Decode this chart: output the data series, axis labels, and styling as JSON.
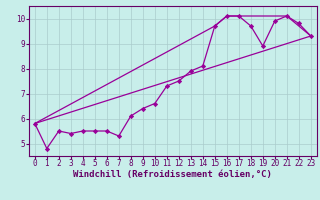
{
  "title": "",
  "xlabel": "Windchill (Refroidissement éolien,°C)",
  "bg_color": "#c8eeea",
  "line_color": "#990099",
  "grid_color": "#aacccc",
  "axis_color": "#660066",
  "spine_color": "#660066",
  "x_data": [
    0,
    1,
    2,
    3,
    4,
    5,
    6,
    7,
    8,
    9,
    10,
    11,
    12,
    13,
    14,
    15,
    16,
    17,
    18,
    19,
    20,
    21,
    22,
    23
  ],
  "y_data": [
    5.8,
    4.8,
    5.5,
    5.4,
    5.5,
    5.5,
    5.5,
    5.3,
    6.1,
    6.4,
    6.6,
    7.3,
    7.5,
    7.9,
    8.1,
    9.7,
    10.1,
    10.1,
    9.7,
    8.9,
    9.9,
    10.1,
    9.8,
    9.3
  ],
  "extra_line1_x": [
    0,
    23
  ],
  "extra_line1_y": [
    5.8,
    9.3
  ],
  "extra_line2_x": [
    0,
    15,
    16,
    17,
    21,
    23
  ],
  "extra_line2_y": [
    5.8,
    9.7,
    10.1,
    10.1,
    10.1,
    9.3
  ],
  "xlim": [
    -0.5,
    23.5
  ],
  "ylim": [
    4.5,
    10.5
  ],
  "xticks": [
    0,
    1,
    2,
    3,
    4,
    5,
    6,
    7,
    8,
    9,
    10,
    11,
    12,
    13,
    14,
    15,
    16,
    17,
    18,
    19,
    20,
    21,
    22,
    23
  ],
  "yticks": [
    5,
    6,
    7,
    8,
    9,
    10
  ],
  "tick_fontsize": 5.5,
  "label_fontsize": 6.5,
  "marker": "D",
  "marker_size": 2.2,
  "line_width": 0.9
}
